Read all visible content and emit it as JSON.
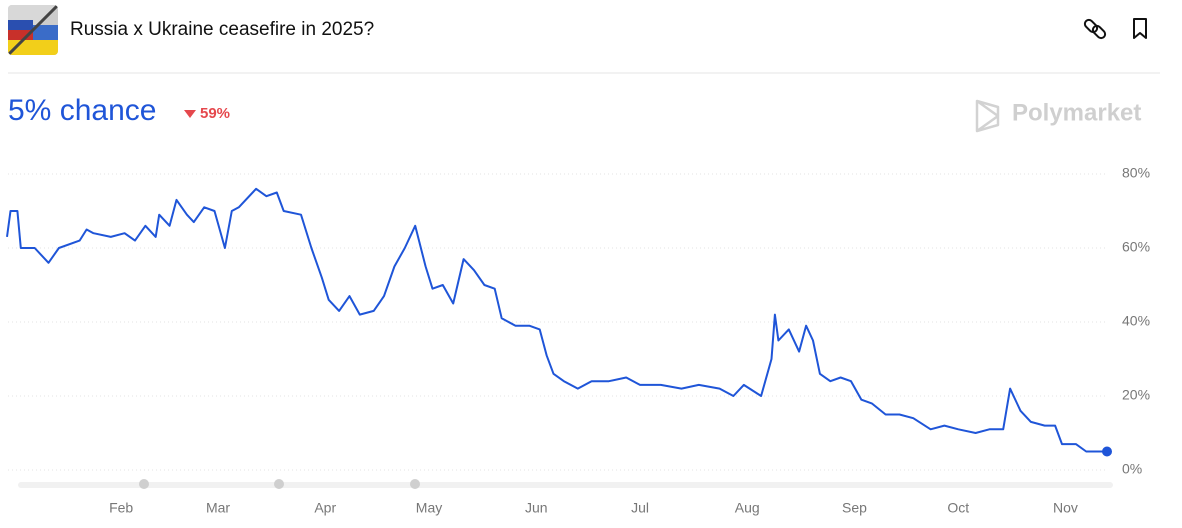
{
  "header": {
    "title": "Russia x Ukraine ceasefire in 2025?",
    "chance": "5% chance",
    "change": "59%",
    "brand": "Polymarket"
  },
  "chart_data": {
    "type": "line",
    "x": [
      -2,
      -1,
      1,
      2,
      6,
      10,
      13,
      19,
      21,
      23,
      28,
      32,
      35,
      38,
      41,
      42,
      45,
      47,
      50,
      52,
      55,
      58,
      61,
      63,
      65,
      70,
      73,
      76,
      78,
      83,
      86,
      89,
      91,
      94,
      97,
      100,
      104,
      107,
      110,
      113,
      116,
      119,
      121,
      124,
      127,
      130,
      133,
      136,
      139,
      141,
      145,
      149,
      152,
      154,
      156,
      159,
      163,
      167,
      172,
      177,
      181,
      187,
      193,
      198,
      204,
      208,
      211,
      216,
      219,
      220,
      221,
      224,
      227,
      229,
      231,
      233,
      236,
      239,
      242,
      245,
      248,
      252,
      256,
      260,
      265,
      269,
      273,
      278,
      282,
      286,
      288,
      291,
      294,
      298,
      301,
      303,
      307,
      310,
      312,
      316
    ],
    "series": [
      {
        "color": "#1f55d8",
        "values": [
          63,
          70,
          70,
          60,
          60,
          56,
          60,
          62,
          65,
          64,
          63,
          64,
          62,
          66,
          63,
          69,
          66,
          73,
          69,
          67,
          71,
          70,
          60,
          70,
          71,
          76,
          74,
          75,
          70,
          69,
          60,
          52,
          46,
          43,
          47,
          42,
          43,
          47,
          55,
          60,
          66,
          55,
          49,
          50,
          45,
          57,
          54,
          50,
          49,
          41,
          39,
          39,
          38,
          31,
          26,
          24,
          22,
          24,
          24,
          25,
          23,
          23,
          22,
          23,
          22,
          20,
          23,
          20,
          30,
          42,
          35,
          38,
          32,
          39,
          35,
          26,
          24,
          25,
          24,
          19,
          18,
          15,
          15,
          14,
          11,
          12,
          11,
          10,
          11,
          11,
          22,
          16,
          13,
          12,
          12,
          7,
          7,
          5,
          5,
          5
        ]
      }
    ],
    "xlim": [
      -2,
      316
    ],
    "xticks": [
      {
        "value": 31,
        "label": "Feb"
      },
      {
        "value": 59,
        "label": "Mar"
      },
      {
        "value": 90,
        "label": "Apr"
      },
      {
        "value": 120,
        "label": "May"
      },
      {
        "value": 151,
        "label": "Jun"
      },
      {
        "value": 181,
        "label": "Jul"
      },
      {
        "value": 212,
        "label": "Aug"
      },
      {
        "value": 243,
        "label": "Sep"
      },
      {
        "value": 273,
        "label": "Oct"
      },
      {
        "value": 304,
        "label": "Nov"
      }
    ],
    "ylim": [
      0,
      80
    ],
    "yticks": [
      {
        "value": 0,
        "label": "0%"
      },
      {
        "value": 20,
        "label": "20%"
      },
      {
        "value": 40,
        "label": "40%"
      },
      {
        "value": 60,
        "label": "60%"
      },
      {
        "value": 80,
        "label": "80%"
      }
    ],
    "grid": true
  }
}
